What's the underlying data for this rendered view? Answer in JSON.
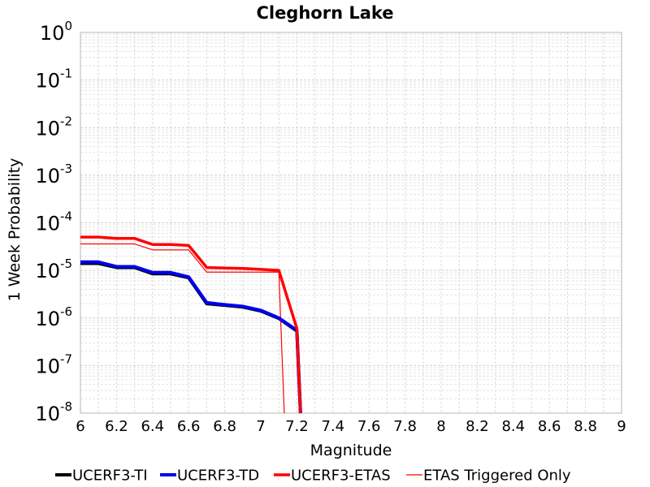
{
  "chart_data": {
    "type": "line",
    "title": "Cleghorn Lake",
    "xlabel": "Magnitude",
    "ylabel": "1 Week Probability",
    "xlim": [
      6,
      9
    ],
    "ylim": [
      1e-08,
      1
    ],
    "yscale": "log",
    "grid": true,
    "legend_position": "bottom",
    "x_ticks": [
      "6",
      "6.2",
      "6.4",
      "6.6",
      "6.8",
      "7",
      "7.2",
      "7.4",
      "7.6",
      "7.8",
      "8",
      "8.2",
      "8.4",
      "8.6",
      "8.8",
      "9"
    ],
    "y_ticks": [
      {
        "base": "10",
        "exp": "0"
      },
      {
        "base": "10",
        "exp": "-1"
      },
      {
        "base": "10",
        "exp": "-2"
      },
      {
        "base": "10",
        "exp": "-3"
      },
      {
        "base": "10",
        "exp": "-4"
      },
      {
        "base": "10",
        "exp": "-5"
      },
      {
        "base": "10",
        "exp": "-6"
      },
      {
        "base": "10",
        "exp": "-7"
      },
      {
        "base": "10",
        "exp": "-8"
      }
    ],
    "series": [
      {
        "name": "UCERF3-TI",
        "color": "#000000",
        "width": 4,
        "x": [
          6.0,
          6.1,
          6.2,
          6.3,
          6.4,
          6.5,
          6.6,
          6.7,
          6.8,
          6.9,
          7.0,
          7.1,
          7.2,
          7.22
        ],
        "y": [
          1.4e-05,
          1.4e-05,
          1.15e-05,
          1.15e-05,
          8.5e-06,
          8.5e-06,
          7e-06,
          2e-06,
          1.85e-06,
          1.7e-06,
          1.4e-06,
          9.8e-07,
          5.3e-07,
          1e-08
        ]
      },
      {
        "name": "UCERF3-TD",
        "color": "#0000ee",
        "width": 4,
        "x": [
          6.0,
          6.1,
          6.2,
          6.3,
          6.4,
          6.5,
          6.6,
          6.7,
          6.8,
          6.9,
          7.0,
          7.1,
          7.2,
          7.22
        ],
        "y": [
          1.5e-05,
          1.5e-05,
          1.2e-05,
          1.2e-05,
          9e-06,
          9e-06,
          7.3e-06,
          2.1e-06,
          1.9e-06,
          1.75e-06,
          1.45e-06,
          1e-06,
          5.5e-07,
          1e-08
        ]
      },
      {
        "name": "UCERF3-ETAS",
        "color": "#ff0000",
        "width": 3.5,
        "x": [
          6.0,
          6.1,
          6.2,
          6.3,
          6.4,
          6.5,
          6.6,
          6.7,
          6.8,
          6.9,
          7.0,
          7.1,
          7.2,
          7.22
        ],
        "y": [
          5e-05,
          5e-05,
          4.7e-05,
          4.7e-05,
          3.5e-05,
          3.5e-05,
          3.35e-05,
          1.15e-05,
          1.12e-05,
          1.1e-05,
          1.05e-05,
          1e-05,
          6e-07,
          1e-08
        ]
      },
      {
        "name": "ETAS Triggered Only",
        "color": "#ff0000",
        "width": 1.2,
        "x": [
          6.0,
          6.1,
          6.2,
          6.3,
          6.4,
          6.5,
          6.6,
          6.7,
          6.8,
          6.9,
          7.0,
          7.1,
          7.13
        ],
        "y": [
          3.6e-05,
          3.6e-05,
          3.6e-05,
          3.6e-05,
          2.7e-05,
          2.7e-05,
          2.7e-05,
          9.2e-06,
          9.2e-06,
          9.2e-06,
          9.2e-06,
          9.2e-06,
          1e-08
        ]
      }
    ]
  }
}
